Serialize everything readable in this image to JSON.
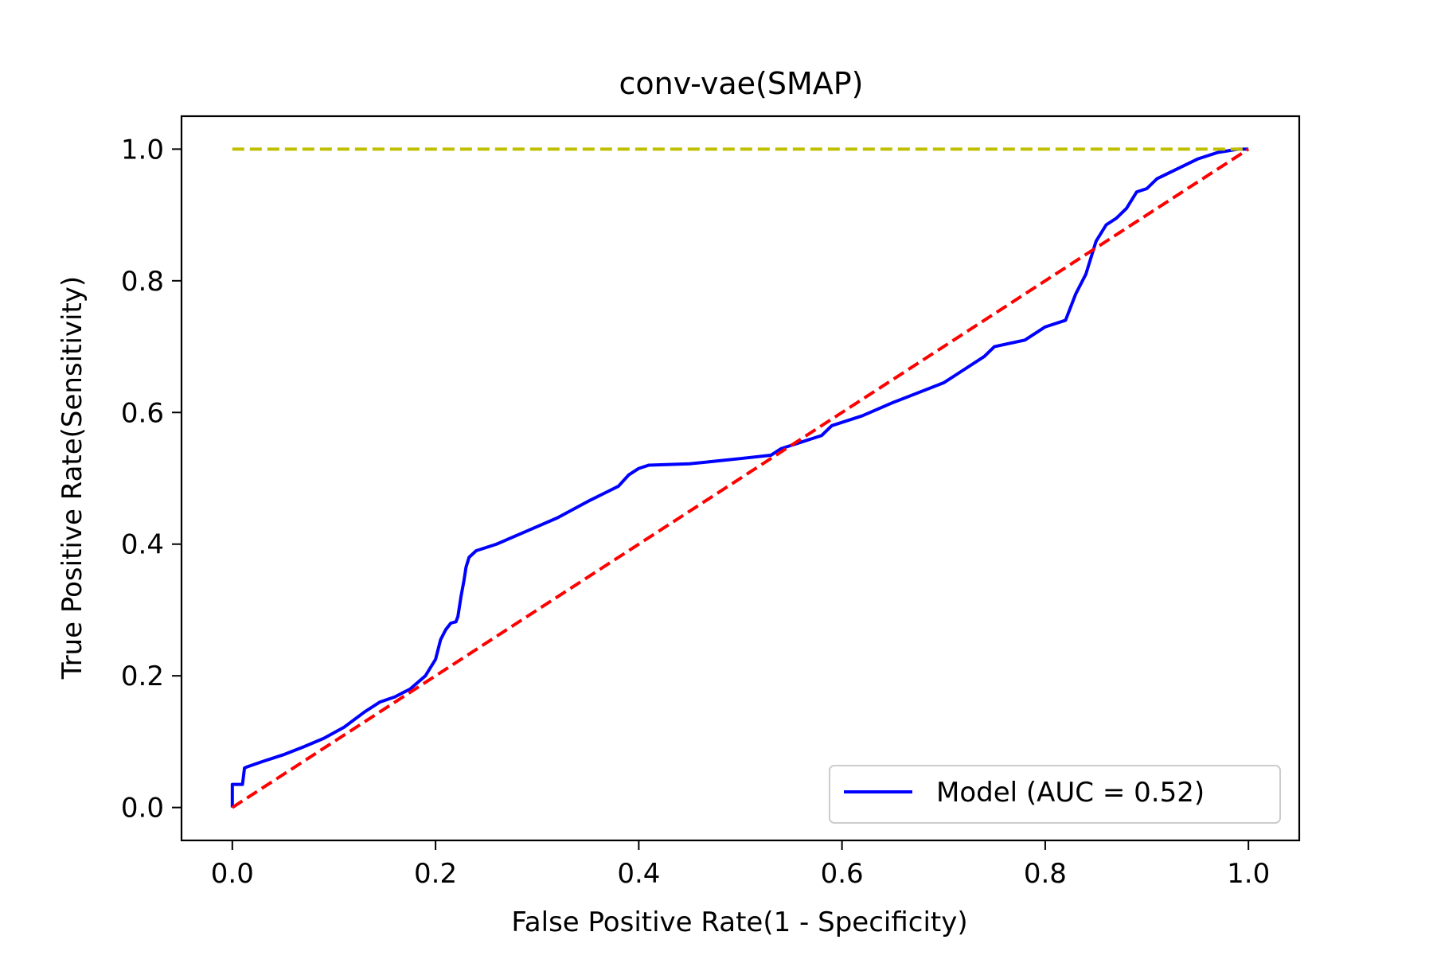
{
  "chart_data": {
    "type": "line",
    "title": "conv-vae(SMAP)",
    "xlabel": "False Positive Rate(1 - Specificity)",
    "ylabel": "True Positive Rate(Sensitivity)",
    "xlim": [
      -0.05,
      1.05
    ],
    "ylim": [
      -0.05,
      1.05
    ],
    "xticks": [
      0.0,
      0.2,
      0.4,
      0.6,
      0.8,
      1.0
    ],
    "yticks": [
      0.0,
      0.2,
      0.4,
      0.6,
      0.8,
      1.0
    ],
    "xtick_labels": [
      "0.0",
      "0.2",
      "0.4",
      "0.6",
      "0.8",
      "1.0"
    ],
    "ytick_labels": [
      "0.0",
      "0.2",
      "0.4",
      "0.6",
      "0.8",
      "1.0"
    ],
    "grid": false,
    "legend_position": "lower-right",
    "series": [
      {
        "name": "Model (AUC = 0.52)",
        "color": "#0000ff",
        "style": "solid",
        "x": [
          0.0,
          0.0,
          0.001,
          0.01,
          0.012,
          0.015,
          0.03,
          0.05,
          0.07,
          0.09,
          0.11,
          0.13,
          0.145,
          0.16,
          0.175,
          0.19,
          0.2,
          0.205,
          0.21,
          0.215,
          0.22,
          0.222,
          0.225,
          0.228,
          0.23,
          0.233,
          0.24,
          0.26,
          0.29,
          0.32,
          0.35,
          0.38,
          0.39,
          0.395,
          0.4,
          0.41,
          0.45,
          0.5,
          0.53,
          0.54,
          0.55,
          0.58,
          0.59,
          0.6,
          0.62,
          0.65,
          0.7,
          0.72,
          0.74,
          0.75,
          0.78,
          0.8,
          0.82,
          0.83,
          0.84,
          0.85,
          0.86,
          0.87,
          0.88,
          0.89,
          0.9,
          0.91,
          0.93,
          0.95,
          0.97,
          0.99,
          1.0
        ],
        "y": [
          0.0,
          0.035,
          0.035,
          0.035,
          0.06,
          0.062,
          0.07,
          0.08,
          0.092,
          0.105,
          0.122,
          0.145,
          0.16,
          0.168,
          0.18,
          0.2,
          0.225,
          0.255,
          0.27,
          0.28,
          0.282,
          0.29,
          0.32,
          0.345,
          0.365,
          0.38,
          0.39,
          0.4,
          0.42,
          0.44,
          0.465,
          0.488,
          0.505,
          0.51,
          0.515,
          0.52,
          0.522,
          0.53,
          0.535,
          0.545,
          0.55,
          0.565,
          0.58,
          0.585,
          0.595,
          0.615,
          0.645,
          0.665,
          0.685,
          0.7,
          0.71,
          0.73,
          0.74,
          0.78,
          0.81,
          0.86,
          0.885,
          0.895,
          0.91,
          0.935,
          0.94,
          0.955,
          0.97,
          0.985,
          0.995,
          1.0,
          1.0
        ]
      },
      {
        "color": "#ff0000",
        "style": "dashed",
        "x": [
          0.0,
          1.0
        ],
        "y": [
          0.0,
          1.0
        ]
      },
      {
        "color": "#bfbf00",
        "style": "dashed",
        "x": [
          0.0,
          1.0
        ],
        "y": [
          1.0,
          1.0
        ]
      }
    ]
  }
}
